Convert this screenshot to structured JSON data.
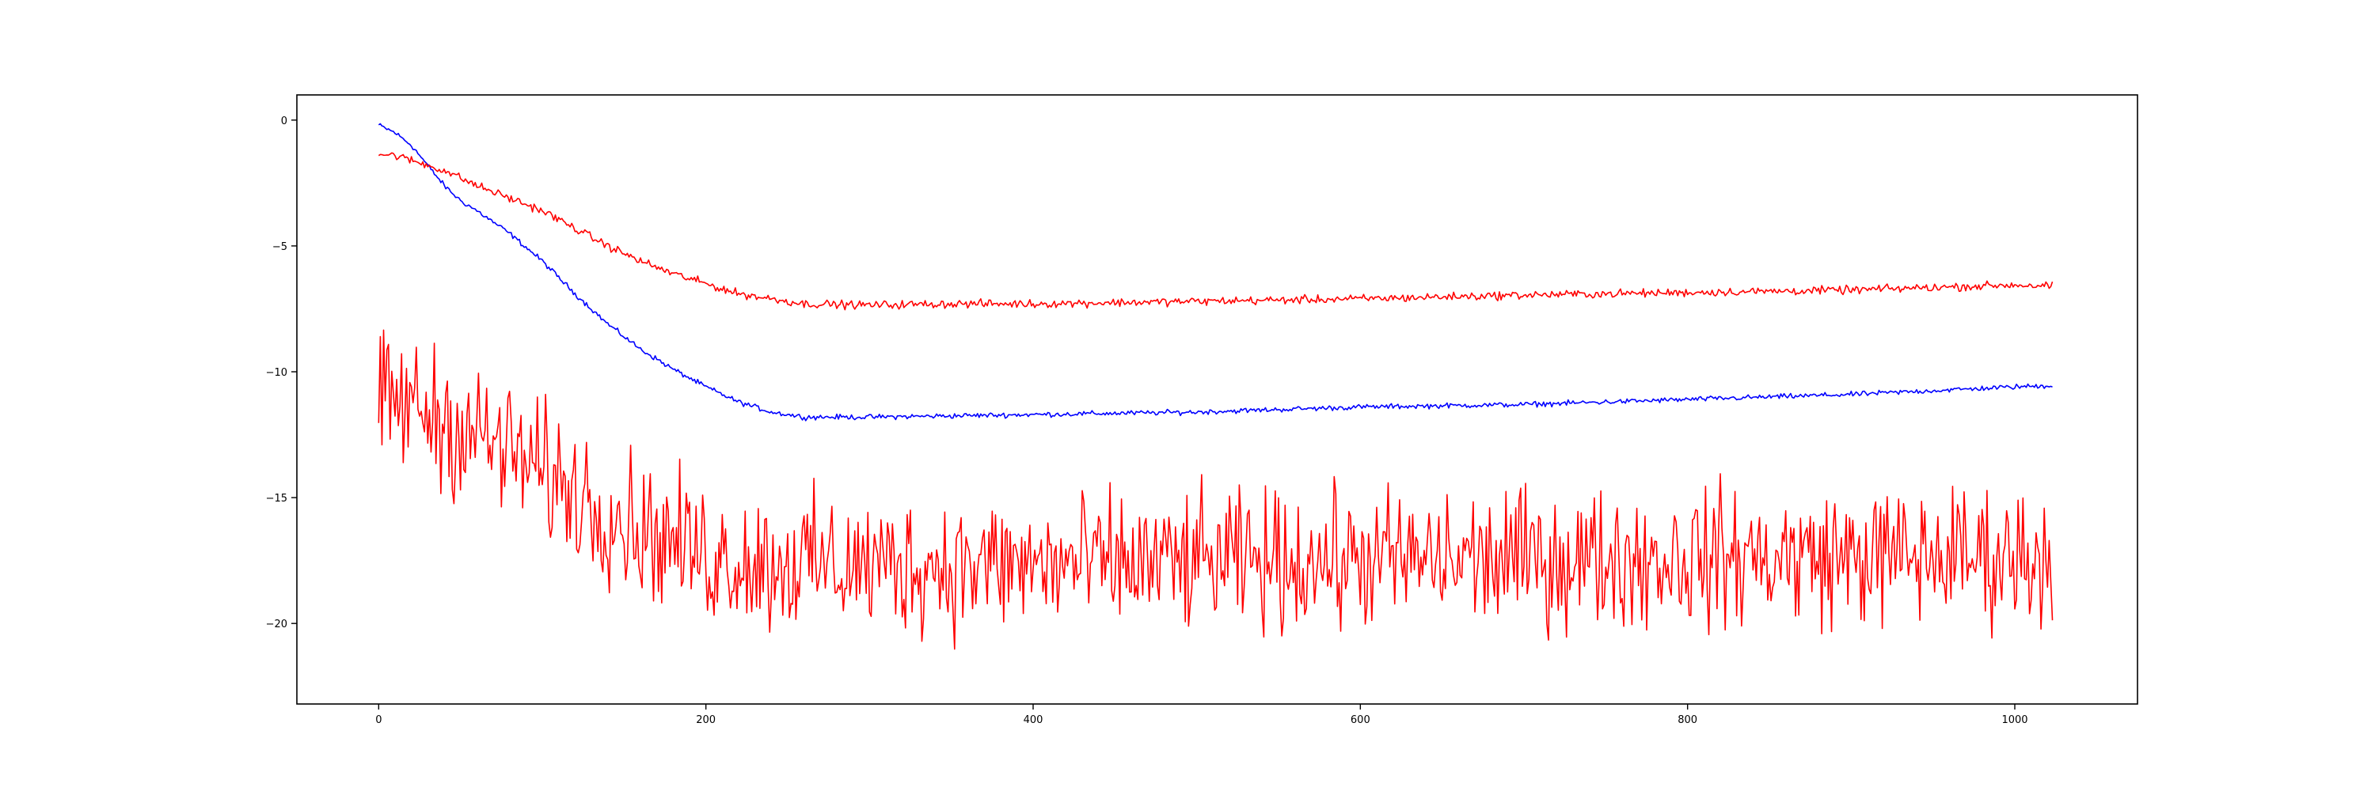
{
  "chart_data": {
    "type": "line",
    "title": "",
    "xlabel": "",
    "ylabel": "",
    "xlim": [
      -50,
      1075
    ],
    "ylim": [
      -23.2,
      1.0
    ],
    "xticks": [
      0,
      200,
      400,
      600,
      800,
      1000
    ],
    "xtick_labels": [
      "0",
      "200",
      "400",
      "600",
      "800",
      "1000"
    ],
    "yticks": [
      0,
      -5,
      -10,
      -15,
      -20
    ],
    "ytick_labels": [
      "0",
      "−5",
      "−10",
      "−15",
      "−20"
    ],
    "grid": false,
    "legend": "none",
    "series": [
      {
        "color": "#0000ff",
        "noise": 0.05,
        "x": [
          0,
          10,
          20,
          30,
          40,
          50,
          60,
          80,
          100,
          120,
          140,
          160,
          180,
          200,
          220,
          240,
          260,
          300,
          350,
          400,
          500,
          600,
          700,
          800,
          900,
          1000,
          1023
        ],
        "y": [
          -0.2,
          -0.5,
          -1.0,
          -1.8,
          -2.6,
          -3.2,
          -3.6,
          -4.5,
          -5.6,
          -6.9,
          -8.1,
          -9.1,
          -9.9,
          -10.6,
          -11.2,
          -11.6,
          -11.8,
          -11.8,
          -11.75,
          -11.7,
          -11.6,
          -11.4,
          -11.3,
          -11.1,
          -10.9,
          -10.6,
          -10.55
        ]
      },
      {
        "color": "#ff0000",
        "noise": 0.08,
        "x": [
          0,
          10,
          20,
          30,
          40,
          50,
          60,
          80,
          100,
          120,
          140,
          160,
          180,
          200,
          220,
          240,
          260,
          300,
          350,
          400,
          500,
          600,
          700,
          800,
          900,
          1000,
          1023
        ],
        "y": [
          -1.35,
          -1.4,
          -1.6,
          -1.8,
          -2.0,
          -2.3,
          -2.6,
          -3.1,
          -3.6,
          -4.3,
          -5.0,
          -5.6,
          -6.1,
          -6.5,
          -6.9,
          -7.1,
          -7.3,
          -7.35,
          -7.3,
          -7.3,
          -7.2,
          -7.1,
          -6.95,
          -6.85,
          -6.75,
          -6.55,
          -6.6
        ]
      },
      {
        "color": "#ff0000",
        "noise": 1.35,
        "x": [
          0,
          20,
          40,
          60,
          80,
          100,
          120,
          140,
          160,
          180,
          200,
          240,
          300,
          400,
          500,
          600,
          700,
          800,
          900,
          1000,
          1023
        ],
        "y": [
          -11.2,
          -11.3,
          -12.0,
          -12.5,
          -13.2,
          -14.0,
          -14.8,
          -15.5,
          -16.2,
          -16.8,
          -17.3,
          -17.6,
          -17.7,
          -17.7,
          -17.6,
          -17.5,
          -17.45,
          -17.4,
          -17.35,
          -17.3,
          -17.3
        ]
      }
    ]
  }
}
